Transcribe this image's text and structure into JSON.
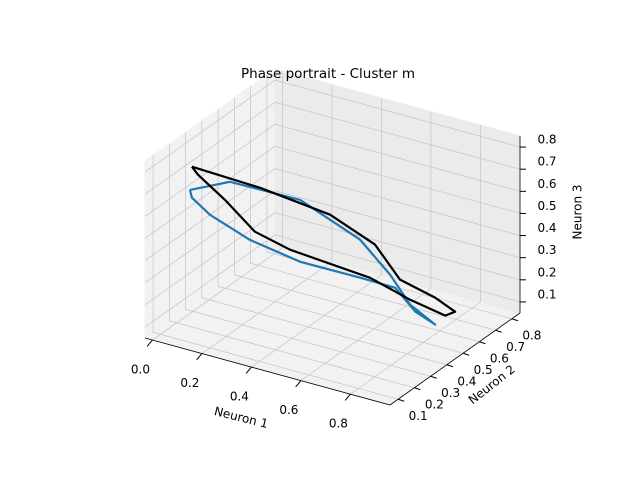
{
  "chart_data": {
    "type": "line3d",
    "title": "Phase portrait - Cluster m",
    "xlabel": "Neuron 1",
    "ylabel": "Neuron 2",
    "zlabel": "Neuron 3",
    "xlim": [
      -0.03,
      0.96
    ],
    "ylim": [
      0.05,
      0.85
    ],
    "zlim": [
      0.05,
      0.85
    ],
    "xticks": [
      {
        "value": 0,
        "label": "0.0"
      },
      0.2,
      0.4,
      0.6,
      0.8
    ],
    "yticks": [
      0.1,
      0.2,
      0.3,
      0.4,
      0.5,
      0.6,
      0.7,
      0.8
    ],
    "zticks": [
      0.1,
      0.2,
      0.3,
      0.4,
      0.5,
      0.6,
      0.7,
      0.8
    ],
    "grid": true,
    "series": [
      {
        "color": "#1f77b4",
        "x": [
          0.053,
          0.182,
          0.4,
          0.576,
          0.665,
          0.746,
          0.847,
          0.799,
          0.751,
          0.642,
          0.433,
          0.263,
          0.134,
          0.061,
          0.053
        ],
        "y": [
          0.2,
          0.25,
          0.35,
          0.45,
          0.5,
          0.5,
          0.5,
          0.45,
          0.4,
          0.35,
          0.3,
          0.25,
          0.2,
          0.2,
          0.2
        ],
        "z": [
          0.667,
          0.717,
          0.65,
          0.472,
          0.315,
          0.204,
          0.145,
          0.215,
          0.334,
          0.372,
          0.406,
          0.479,
          0.579,
          0.634,
          0.667
        ]
      },
      {
        "color": "#000000",
        "x": [
          0.061,
          0.271,
          0.488,
          0.604,
          0.672,
          0.781,
          0.862,
          0.855,
          0.746,
          0.617,
          0.359,
          0.25,
          0.162,
          0.086,
          0.061
        ],
        "y": [
          0.2,
          0.3,
          0.4,
          0.5,
          0.55,
          0.6,
          0.6,
          0.55,
          0.5,
          0.45,
          0.35,
          0.3,
          0.25,
          0.2,
          0.2
        ],
        "z": [
          0.774,
          0.691,
          0.584,
          0.432,
          0.269,
          0.195,
          0.156,
          0.162,
          0.226,
          0.312,
          0.412,
          0.486,
          0.629,
          0.745,
          0.774
        ]
      }
    ]
  }
}
